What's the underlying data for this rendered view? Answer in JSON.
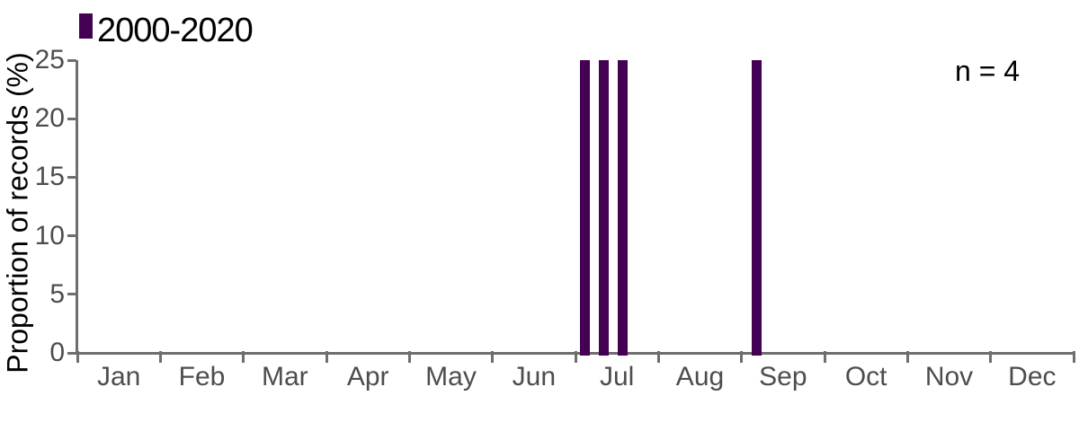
{
  "colors": {
    "bar": "#440154",
    "axis_line": "#6e6e6e",
    "tick_label_text": "#4d4d4d",
    "text": "#000000",
    "background": "#ffffff"
  },
  "chart_data": {
    "type": "bar",
    "title": "",
    "xlabel": "",
    "ylabel": "Proportion of records (%)",
    "ylim": [
      0,
      25
    ],
    "yticks": [
      0,
      5,
      10,
      15,
      20,
      25
    ],
    "x_categories": [
      "Jan",
      "Feb",
      "Mar",
      "Apr",
      "May",
      "Jun",
      "Jul",
      "Aug",
      "Sep",
      "Oct",
      "Nov",
      "Dec"
    ],
    "x_axis_note": "months of year, ticks at month boundaries",
    "grid": false,
    "legend": {
      "label": "2000-2020",
      "position": "top-left"
    },
    "annotation": "n = 4",
    "n": 4,
    "days_in_year": 365,
    "bar_width_days": 3.7,
    "series": [
      {
        "name": "2000-2020",
        "color": "#440154",
        "points": [
          {
            "day_of_year": 184,
            "value": 25
          },
          {
            "day_of_year": 191,
            "value": 25
          },
          {
            "day_of_year": 198,
            "value": 25
          },
          {
            "day_of_year": 247,
            "value": 25
          }
        ]
      }
    ]
  }
}
